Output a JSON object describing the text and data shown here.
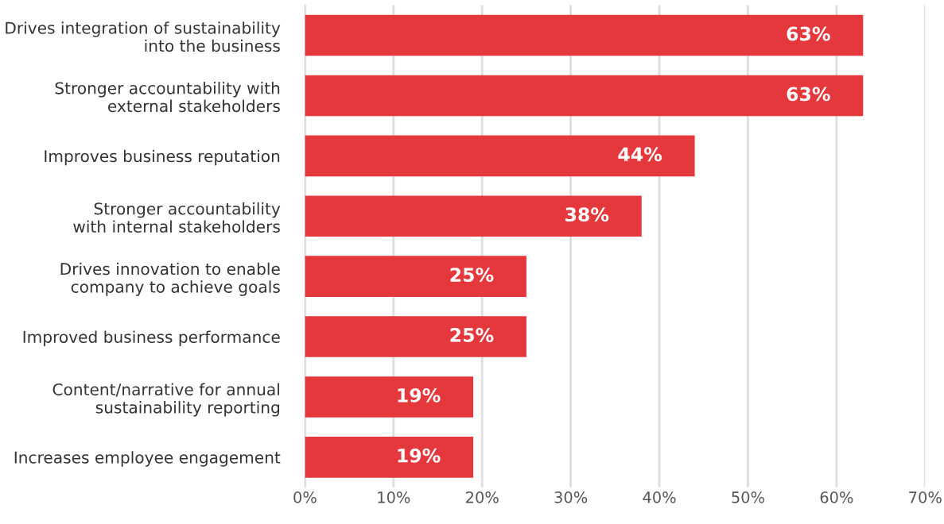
{
  "chart_data": {
    "type": "bar",
    "orientation": "horizontal",
    "categories": [
      "Drives integration of sustainability\ninto the business",
      "Stronger accountability with\nexternal stakeholders",
      "Improves business reputation",
      "Stronger accountability\nwith internal stakeholders",
      "Drives innovation to enable\ncompany to achieve goals",
      "Improved business performance",
      "Content/narrative for annual\nsustainability reporting",
      "Increases employee engagement"
    ],
    "values": [
      63,
      63,
      44,
      38,
      25,
      25,
      19,
      19
    ],
    "value_labels": [
      "63%",
      "63%",
      "44%",
      "38%",
      "25%",
      "25%",
      "19%",
      "19%"
    ],
    "color": "#e5383d",
    "xlim": [
      0,
      70
    ],
    "xticks": [
      {
        "value": 0,
        "label": "0%"
      },
      {
        "value": 10,
        "label": "10%"
      },
      {
        "value": 20,
        "label": "20%"
      },
      {
        "value": 30,
        "label": "30%"
      },
      {
        "value": 40,
        "label": "40%"
      },
      {
        "value": 50,
        "label": "50%"
      },
      {
        "value": 60,
        "label": "60%"
      },
      {
        "value": 70,
        "label": "70%"
      }
    ],
    "grid": "x",
    "legend": false
  }
}
